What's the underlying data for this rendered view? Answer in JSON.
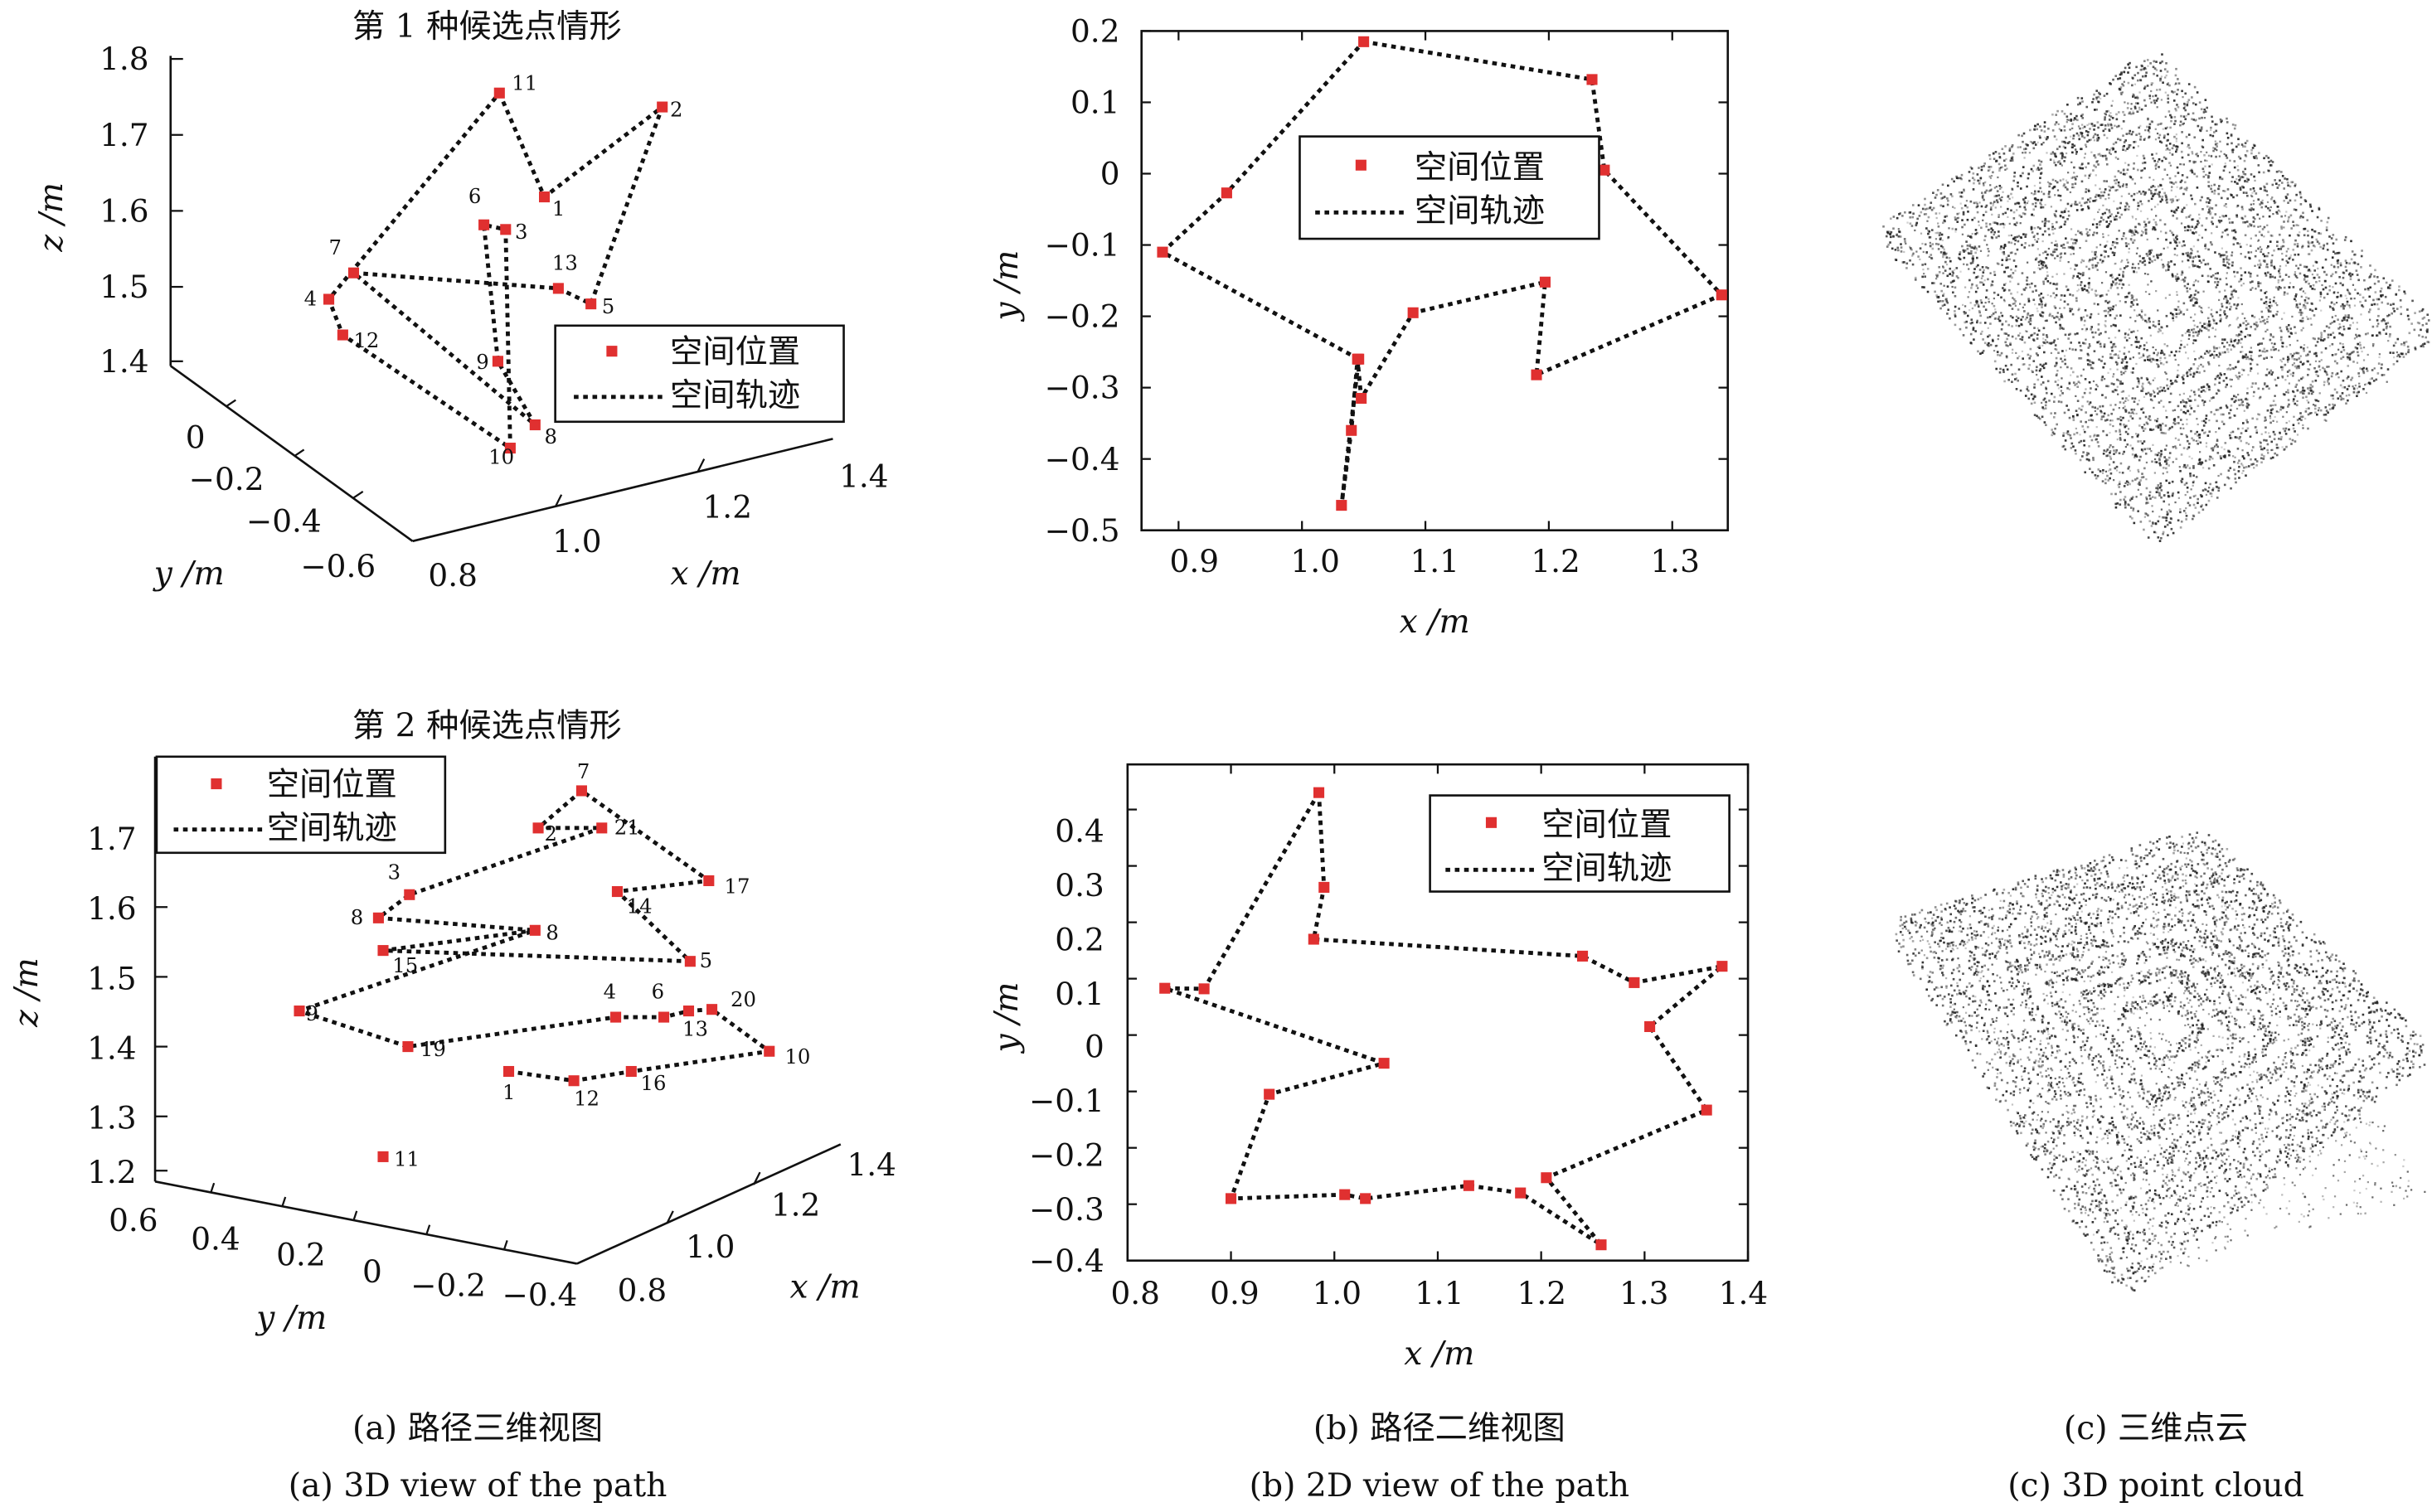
{
  "colors": {
    "marker": "#e03030",
    "path": "#111111",
    "axis": "#111111",
    "cloud": "#222222"
  },
  "legend": {
    "marker_label": "空间位置",
    "path_label": "空间轨迹"
  },
  "axis_labels": {
    "x": "x /m",
    "y": "y /m",
    "z": "z /m"
  },
  "captions": {
    "a_cn": "(a) 路径三维视图",
    "a_en": "(a) 3D view of the path",
    "b_cn": "(b) 路径二维视图",
    "b_en": "(b) 2D view of the path",
    "c_cn": "(c) 三维点云",
    "c_en": "(c) 3D point cloud"
  },
  "chart_data": [
    {
      "type": "scatter",
      "view": "3d",
      "title": "第 1 种候选点情形",
      "xlabel": "x /m",
      "ylabel": "y /m",
      "zlabel": "z /m",
      "x_ticks": [
        "0.8",
        "1.0",
        "1.2",
        "1.4"
      ],
      "y_ticks": [
        "0",
        "−0.2",
        "−0.4",
        "−0.6"
      ],
      "z_ticks": [
        "1.8",
        "1.7",
        "1.6",
        "1.5",
        "1.4"
      ],
      "points": [
        {
          "label": "11",
          "xp": 322,
          "yp": 60
        },
        {
          "label": "1",
          "xp": 351,
          "yp": 127
        },
        {
          "label": "2",
          "xp": 427,
          "yp": 69
        },
        {
          "label": "5",
          "xp": 381,
          "yp": 196
        },
        {
          "label": "13",
          "xp": 360,
          "yp": 186
        },
        {
          "label": "9",
          "xp": 321,
          "yp": 233
        },
        {
          "label": "8",
          "xp": 345,
          "yp": 274
        },
        {
          "label": "10",
          "xp": 329,
          "yp": 289
        },
        {
          "label": "3",
          "xp": 326,
          "yp": 148
        },
        {
          "label": "6",
          "xp": 312,
          "yp": 145
        },
        {
          "label": "7",
          "xp": 228,
          "yp": 176
        },
        {
          "label": "4",
          "xp": 212,
          "yp": 193
        },
        {
          "label": "12",
          "xp": 221,
          "yp": 216
        }
      ],
      "legend": [
        "空间位置",
        "空间轨迹"
      ],
      "legend_position": "right"
    },
    {
      "type": "scatter",
      "view": "2d",
      "xlabel": "x /m",
      "ylabel": "y /m",
      "xlim": [
        0.87,
        1.345
      ],
      "ylim": [
        -0.5,
        0.2
      ],
      "x_ticks": [
        "0.9",
        "1.0",
        "1.1",
        "1.2",
        "1.3"
      ],
      "y_ticks": [
        "0.2",
        "0.1",
        "0",
        "−0.1",
        "−0.2",
        "−0.3",
        "−0.4",
        "−0.5"
      ],
      "x": [
        1.05,
        1.235,
        1.245,
        1.34,
        1.19,
        1.197,
        1.09,
        1.048,
        1.045,
        1.04,
        1.032,
        1.046,
        0.887,
        0.939
      ],
      "y": [
        0.185,
        0.132,
        0.005,
        -0.17,
        -0.282,
        -0.152,
        -0.195,
        -0.315,
        -0.26,
        -0.36,
        -0.465,
        -0.26,
        -0.11,
        -0.027
      ],
      "legend": [
        "空间位置",
        "空间轨迹"
      ],
      "legend_position": "top-center"
    },
    {
      "type": "scatter",
      "view": "3d",
      "title": "第 2 种候选点情形",
      "xlabel": "x /m",
      "ylabel": "y /m",
      "zlabel": "z /m",
      "x_ticks": [
        "0.8",
        "1.0",
        "1.2",
        "1.4"
      ],
      "y_ticks": [
        "0.6",
        "0.4",
        "0.2",
        "0",
        "−0.2",
        "−0.4"
      ],
      "z_ticks": [
        "1.7",
        "1.6",
        "1.5",
        "1.4",
        "1.3",
        "1.2"
      ],
      "points": [
        {
          "label": "7",
          "xp": 375,
          "yp": 510
        },
        {
          "label": "2",
          "xp": 347,
          "yp": 534
        },
        {
          "label": "21",
          "xp": 388,
          "yp": 534
        },
        {
          "label": "3",
          "xp": 264,
          "yp": 577
        },
        {
          "label": "8",
          "xp": 244,
          "yp": 592
        },
        {
          "label": "14",
          "xp": 398,
          "yp": 575
        },
        {
          "label": "17",
          "xp": 457,
          "yp": 568
        },
        {
          "label": "5",
          "xp": 445,
          "yp": 620
        },
        {
          "label": "15",
          "xp": 247,
          "yp": 613
        },
        {
          "label": "8",
          "xp": 345,
          "yp": 600
        },
        {
          "label": "9",
          "xp": 193,
          "yp": 652
        },
        {
          "label": "19",
          "xp": 263,
          "yp": 675
        },
        {
          "label": "11",
          "xp": 247,
          "yp": 746
        },
        {
          "label": "4",
          "xp": 397,
          "yp": 656
        },
        {
          "label": "6",
          "xp": 428,
          "yp": 656
        },
        {
          "label": "13",
          "xp": 444,
          "yp": 652
        },
        {
          "label": "20",
          "xp": 459,
          "yp": 651
        },
        {
          "label": "10",
          "xp": 496,
          "yp": 678
        },
        {
          "label": "16",
          "xp": 407,
          "yp": 691
        },
        {
          "label": "12",
          "xp": 370,
          "yp": 697
        },
        {
          "label": "1",
          "xp": 328,
          "yp": 691
        }
      ],
      "legend": [
        "空间位置",
        "空间轨迹"
      ],
      "legend_position": "top-left"
    },
    {
      "type": "scatter",
      "view": "2d",
      "xlabel": "x /m",
      "ylabel": "y /m",
      "xlim": [
        0.8,
        1.4
      ],
      "ylim": [
        -0.4,
        0.48
      ],
      "x_ticks": [
        "0.8",
        "0.9",
        "1.0",
        "1.1",
        "1.2",
        "1.3",
        "1.4"
      ],
      "y_ticks": [
        "0.4",
        "0.3",
        "0.2",
        "0.1",
        "0",
        "−0.1",
        "−0.2",
        "−0.3",
        "−0.4"
      ],
      "x": [
        0.985,
        0.99,
        0.98,
        1.24,
        1.29,
        1.375,
        1.305,
        1.36,
        1.205,
        1.258,
        1.18,
        1.13,
        1.03,
        1.01,
        0.9,
        0.937,
        1.048,
        0.836,
        0.874
      ],
      "y": [
        0.43,
        0.262,
        0.17,
        0.14,
        0.093,
        0.122,
        0.015,
        -0.133,
        -0.253,
        -0.372,
        -0.28,
        -0.267,
        -0.29,
        -0.283,
        -0.29,
        -0.105,
        -0.05,
        0.083,
        0.082
      ],
      "legend": [
        "空间位置",
        "空间轨迹"
      ],
      "legend_position": "top-right"
    }
  ]
}
